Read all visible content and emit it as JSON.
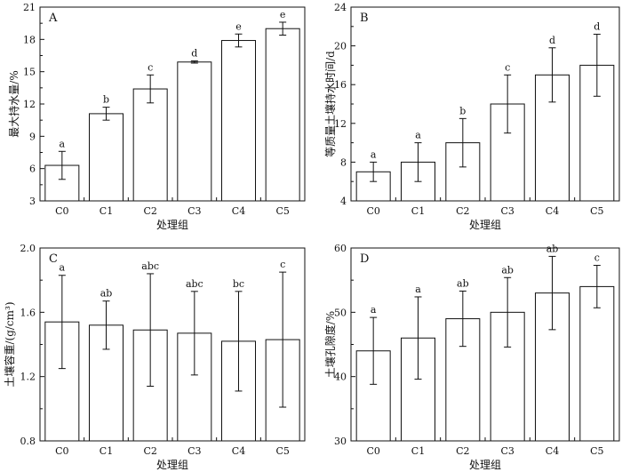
{
  "chart_data": [
    {
      "type": "bar",
      "panel_label": "A",
      "categories": [
        "C0",
        "C1",
        "C2",
        "C3",
        "C4",
        "C5"
      ],
      "values": [
        6.3,
        11.1,
        13.4,
        15.9,
        17.9,
        19.0
      ],
      "errors": [
        1.3,
        0.6,
        1.3,
        0.1,
        0.6,
        0.6
      ],
      "letters": [
        "a",
        "b",
        "c",
        "d",
        "e",
        "e"
      ],
      "xlabel": "处理组",
      "ylabel": "最大持水量/%",
      "ylim": [
        3,
        21
      ],
      "yticks": [
        3,
        6,
        9,
        12,
        15,
        18,
        21
      ],
      "yticklabels": [
        "3",
        "6",
        "9",
        "12",
        "15",
        "18",
        "21"
      ]
    },
    {
      "type": "bar",
      "panel_label": "B",
      "categories": [
        "C0",
        "C1",
        "C2",
        "C3",
        "C4",
        "C5"
      ],
      "values": [
        7.0,
        8.0,
        10.0,
        14.0,
        17.0,
        18.0
      ],
      "errors": [
        1.0,
        2.0,
        2.5,
        3.0,
        2.8,
        3.2
      ],
      "letters": [
        "a",
        "a",
        "b",
        "c",
        "d",
        "d"
      ],
      "xlabel": "处理组",
      "ylabel": "等质量土壤持水时间/d",
      "ylim": [
        4,
        24
      ],
      "yticks": [
        4,
        8,
        12,
        16,
        20,
        24
      ],
      "yticklabels": [
        "4",
        "8",
        "12",
        "16",
        "20",
        "24"
      ]
    },
    {
      "type": "bar",
      "panel_label": "C",
      "categories": [
        "C0",
        "C1",
        "C2",
        "C3",
        "C4",
        "C5"
      ],
      "values": [
        1.54,
        1.52,
        1.49,
        1.47,
        1.42,
        1.43
      ],
      "errors": [
        0.29,
        0.15,
        0.35,
        0.26,
        0.31,
        0.42
      ],
      "letters": [
        "a",
        "ab",
        "abc",
        "abc",
        "bc",
        "c"
      ],
      "xlabel": "处理组",
      "ylabel": "土壤容重/(g/cm³)",
      "ylim": [
        0.8,
        2.0
      ],
      "yticks": [
        0.8,
        1.2,
        1.6,
        2.0
      ],
      "yticklabels": [
        "0.8",
        "1.2",
        "1.6",
        "2.0"
      ]
    },
    {
      "type": "bar",
      "panel_label": "D",
      "categories": [
        "C0",
        "C1",
        "C2",
        "C3",
        "C4",
        "C5"
      ],
      "values": [
        44.0,
        46.0,
        49.0,
        50.0,
        53.0,
        54.0
      ],
      "errors": [
        5.2,
        6.4,
        4.3,
        5.4,
        5.7,
        3.3
      ],
      "letters": [
        "a",
        "a",
        "ab",
        "ab",
        "ab",
        "c"
      ],
      "xlabel": "处理组",
      "ylabel": "土壤孔隙度/%",
      "ylim": [
        30,
        60
      ],
      "yticks": [
        30,
        40,
        50,
        60
      ],
      "yticklabels": [
        "30",
        "40",
        "50",
        "60"
      ]
    }
  ]
}
